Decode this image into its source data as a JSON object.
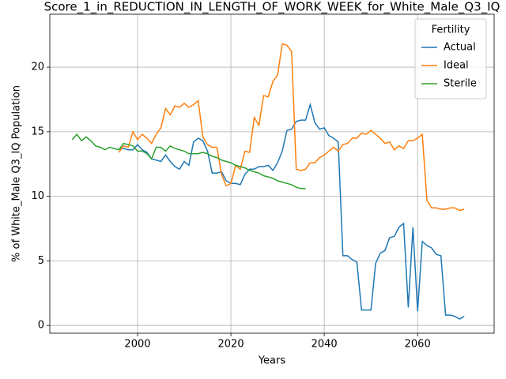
{
  "chart_data": {
    "type": "line",
    "title": "Score_1_in_REDUCTION_IN_LENGTH_OF_WORK_WEEK_for_White_Male_Q3_IQ",
    "xlabel": "Years",
    "ylabel": "% of White_Male Q3_IQ Population",
    "legend_title": "Fertility",
    "legend": "upper right",
    "grid": true,
    "xlim": [
      1981.2,
      2076.4
    ],
    "ylim": [
      -0.6,
      24.1
    ],
    "xticks": [
      2000,
      2020,
      2040,
      2060
    ],
    "yticks": [
      0,
      5,
      10,
      15,
      20
    ],
    "x": [
      1986,
      1987,
      1988,
      1989,
      1990,
      1991,
      1992,
      1993,
      1994,
      1995,
      1996,
      1997,
      1998,
      1999,
      2000,
      2001,
      2002,
      2003,
      2004,
      2005,
      2006,
      2007,
      2008,
      2009,
      2010,
      2011,
      2012,
      2013,
      2014,
      2015,
      2016,
      2017,
      2018,
      2019,
      2020,
      2021,
      2022,
      2023,
      2024,
      2025,
      2026,
      2027,
      2028,
      2029,
      2030,
      2031,
      2032,
      2033,
      2034,
      2035,
      2036,
      2037,
      2038,
      2039,
      2040,
      2041,
      2042,
      2043,
      2044,
      2045,
      2046,
      2047,
      2048,
      2049,
      2050,
      2051,
      2052,
      2053,
      2054,
      2055,
      2056,
      2057,
      2058,
      2059,
      2060,
      2061,
      2062,
      2063,
      2064,
      2065,
      2066,
      2067,
      2068,
      2069,
      2070
    ],
    "series": [
      {
        "name": "Actual",
        "color": "#1f77b4",
        "values": [
          null,
          null,
          null,
          null,
          null,
          null,
          null,
          null,
          null,
          null,
          13.7,
          13.7,
          13.6,
          13.6,
          14.0,
          13.6,
          13.4,
          12.9,
          12.8,
          12.7,
          13.2,
          12.7,
          12.3,
          12.1,
          12.7,
          12.4,
          14.2,
          14.5,
          14.3,
          13.5,
          11.8,
          11.8,
          11.9,
          11.2,
          11.0,
          11.0,
          10.9,
          11.7,
          12.1,
          12.1,
          12.3,
          12.3,
          12.4,
          12.0,
          12.6,
          13.5,
          15.1,
          15.2,
          15.8,
          15.9,
          15.9,
          17.1,
          15.7,
          15.2,
          15.3,
          14.7,
          14.5,
          14.2,
          5.4,
          5.4,
          5.1,
          4.9,
          1.2,
          1.2,
          1.2,
          4.8,
          5.6,
          5.8,
          6.8,
          6.9,
          7.6,
          7.9,
          1.4,
          7.6,
          1.1,
          6.5,
          6.2,
          6.0,
          5.5,
          5.4,
          0.8,
          0.8,
          0.7,
          0.5,
          0.7
        ]
      },
      {
        "name": "Ideal",
        "color": "#ff7f0e",
        "values": [
          null,
          null,
          null,
          null,
          null,
          null,
          null,
          null,
          null,
          null,
          13.4,
          13.9,
          13.8,
          15.0,
          14.4,
          14.8,
          14.5,
          14.1,
          14.8,
          15.3,
          16.8,
          16.3,
          17.0,
          16.9,
          17.2,
          16.9,
          17.1,
          17.4,
          14.6,
          14.0,
          13.8,
          13.8,
          11.7,
          10.8,
          11.0,
          12.4,
          12.1,
          13.5,
          13.4,
          16.1,
          15.5,
          17.8,
          17.7,
          18.9,
          19.4,
          21.8,
          21.7,
          21.2,
          12.1,
          12.0,
          12.1,
          12.6,
          12.6,
          13.0,
          13.2,
          13.5,
          13.8,
          13.5,
          14.0,
          14.1,
          14.5,
          14.5,
          14.9,
          14.8,
          15.1,
          14.8,
          14.5,
          14.1,
          14.2,
          13.6,
          13.9,
          13.7,
          14.3,
          14.3,
          14.5,
          14.8,
          9.7,
          9.1,
          9.1,
          9.0,
          9.0,
          9.1,
          9.1,
          8.9,
          9.0
        ]
      },
      {
        "name": "Sterile",
        "color": "#2ca02c",
        "values": [
          14.4,
          14.8,
          14.3,
          14.6,
          14.3,
          13.9,
          13.8,
          13.6,
          13.8,
          13.7,
          13.6,
          14.1,
          14.0,
          13.9,
          13.5,
          13.5,
          13.3,
          12.9,
          13.8,
          13.8,
          13.5,
          13.9,
          13.7,
          13.6,
          13.5,
          13.3,
          13.3,
          13.3,
          13.4,
          13.3,
          13.1,
          13.0,
          12.8,
          12.7,
          12.6,
          12.4,
          12.3,
          12.2,
          12.0,
          11.9,
          11.8,
          11.6,
          11.5,
          11.4,
          11.2,
          11.1,
          11.0,
          10.9,
          10.7,
          10.6,
          10.6,
          null,
          null,
          null,
          null,
          null,
          null,
          null,
          null,
          null,
          null,
          null,
          null,
          null,
          null,
          null,
          null,
          null,
          null,
          null,
          null,
          null,
          null,
          null,
          null,
          null,
          null,
          null,
          null,
          null,
          null,
          null,
          null,
          null,
          null
        ]
      }
    ]
  }
}
